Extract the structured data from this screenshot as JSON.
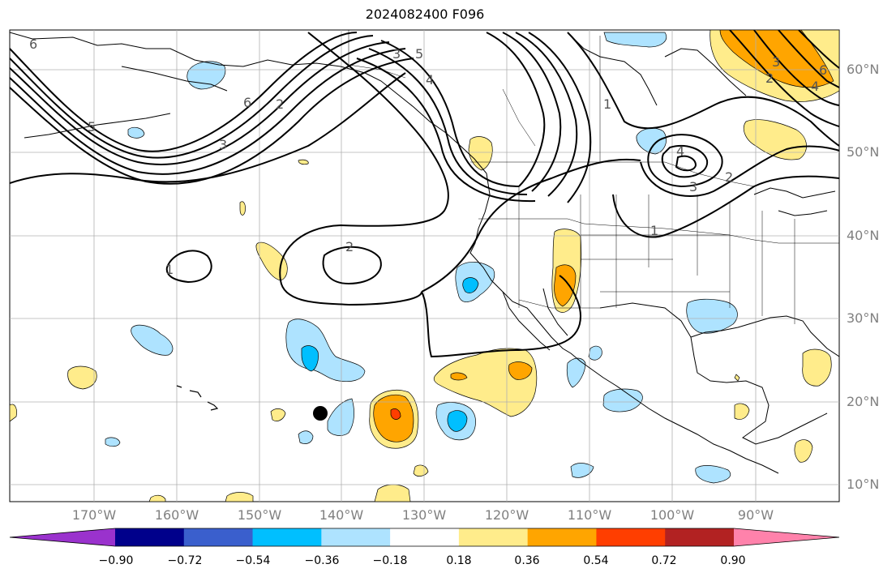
{
  "title": "2024082400 F096",
  "lat_labels": [
    "60°N",
    "50°N",
    "40°N",
    "30°N",
    "20°N",
    "10°N"
  ],
  "lon_labels": [
    "170°W",
    "160°W",
    "150°W",
    "140°W",
    "130°W",
    "120°W",
    "110°W",
    "100°W",
    "90°W"
  ],
  "colorbar": {
    "ticks": [
      "−0.90",
      "−0.72",
      "−0.54",
      "−0.36",
      "−0.18",
      "0.18",
      "0.36",
      "0.54",
      "0.72",
      "0.90"
    ],
    "colors": [
      "#9a32cd",
      "#00008b",
      "#3a5fcd",
      "#00bfff",
      "#aee3ff",
      "#ffffff",
      "#ffec8b",
      "#ffa500",
      "#ff3e00",
      "#b22222",
      "#ff82ab"
    ]
  },
  "contour_labels": [
    "6",
    "5",
    "3",
    "2",
    "6",
    "5",
    "4",
    "3",
    "1",
    "2",
    "1",
    "4",
    "3",
    "2",
    "1",
    "3",
    "2",
    "6",
    "4"
  ],
  "colors": {
    "light_blue": "#aee3ff",
    "blue": "#00bfff",
    "yellow": "#ffec8b",
    "orange": "#ffa500",
    "red": "#ff3e00"
  },
  "marker": "black dot"
}
